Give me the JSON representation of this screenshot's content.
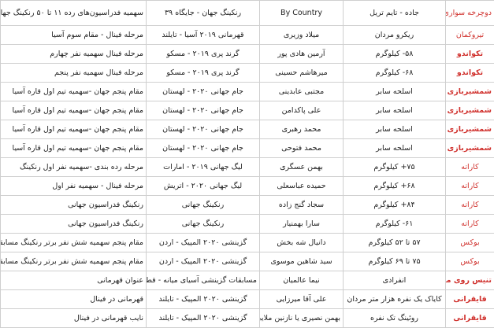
{
  "table": {
    "rows": [
      [
        "دوچرخه سواری",
        "جاده - تایم تریل",
        "By Country",
        "رنکینگ جهان - جایگاه ۳۹",
        "سهمیه فدراسیون‌های رده ۱۱ تا ۵۰ رنکینگ جهانی"
      ],
      [
        "تیروکمان",
        "ریکرو مردان",
        "میلاد وزیری",
        "قهرمانی ۲۰۱۹ آسیا - تایلند",
        "مرحله فینال - مقام سوم آسیا"
      ],
      [
        "تکواندو",
        "۵۸- کیلوگرم",
        "آرمین هادی پور",
        "گرند پری ۲۰۱۹ - مسکو",
        "مرحله فینال سهمیه نفر چهارم"
      ],
      [
        "تکواندو",
        "۶۸- کیلوگرم",
        "میرهاشم حسینی",
        "گرند پری ۲۰۱۹ - مسکو",
        "مرحله فینال سهمیه نفر پنجم"
      ],
      [
        "شمشیربازی",
        "اسلحه سابر",
        "مجتبی عابدینی",
        "جام جهانی ۲۰۲۰ - لهستان",
        "مقام پنجم جهان -سهمیه تیم اول قاره آسیا"
      ],
      [
        "شمشیربازی",
        "اسلحه سابر",
        "علی پاکدامن",
        "جام جهانی ۲۰۲۰ - لهستان",
        "مقام پنجم جهان -سهمیه تیم اول قاره آسیا"
      ],
      [
        "شمشیربازی",
        "اسلحه سابر",
        "محمد رهبری",
        "جام جهانی ۲۰۲۰ - لهستان",
        "مقام پنجم جهان -سهمیه تیم اول قاره آسیا"
      ],
      [
        "شمشیربازی",
        "اسلحه سابر",
        "محمد فتوحی",
        "جام جهانی ۲۰۲۰ - لهستان",
        "مقام پنجم جهان -سهمیه تیم اول قاره آسیا"
      ],
      [
        "کاراته",
        "۷۵+ کیلوگرم",
        "بهمن عسگری",
        "لیگ جهانی ۲۰۱۹ - امارات",
        "مرحله رده بندی -سهمیه نفر اول رنکینگ"
      ],
      [
        "کاراته",
        "۶۸+ کیلوگرم",
        "حمیده عباسعلی",
        "لیگ جهانی ۲۰۲۰ - اتریش",
        "مرحله فینال - سهمیه نفر اول"
      ],
      [
        "کاراته",
        "۸۴+ کیلوگرم",
        "سجاد گنج زاده",
        "رنکینگ جهانی",
        "رنکینگ فدراسیون جهانی"
      ],
      [
        "کاراته",
        "۶۱- کیلوگرم",
        "سارا بهمنیار",
        "رنکینگ جهانی",
        "رنکینگ فدراسیون جهانی"
      ],
      [
        "بوکس",
        "۵۷ تا ۵۲ کیلوگرم",
        "دانیال شه بخش",
        "گزینشی ۲۰۲۰ المپیک - اردن",
        "مقام پنجم سهمیه شش نفر برتر رنکینگ مسابقات"
      ],
      [
        "بوکس",
        "۷۵ تا ۶۹ کیلوگرم",
        "سید شاهین موسوی",
        "گزینشی ۲۰۲۰ المپیک - اردن",
        "مقام پنجم سهمیه شش نفر برتر رنکینگ مسابقات"
      ],
      [
        "تنیس روی میز",
        "انفرادی",
        "نیما عالمیان",
        "مسابقات گزینشی آسیای میانه - قطر",
        "عنوان قهرمانی"
      ],
      [
        "قایقرانی",
        "کایاک یک نفره هزار متر مردان",
        "علی آقا میرزایی",
        "گزینشی ۲۰۲۰ المپیک - تایلند",
        "قهرمانی در فینال"
      ],
      [
        "قایقرانی",
        "روئینگ تک نفره",
        "بهمن نصیری یا نازنین ملایی",
        "گزینشی ۲۰۲۰ المپیک - تایلند",
        "نایب قهرمانی در فینال"
      ]
    ]
  }
}
